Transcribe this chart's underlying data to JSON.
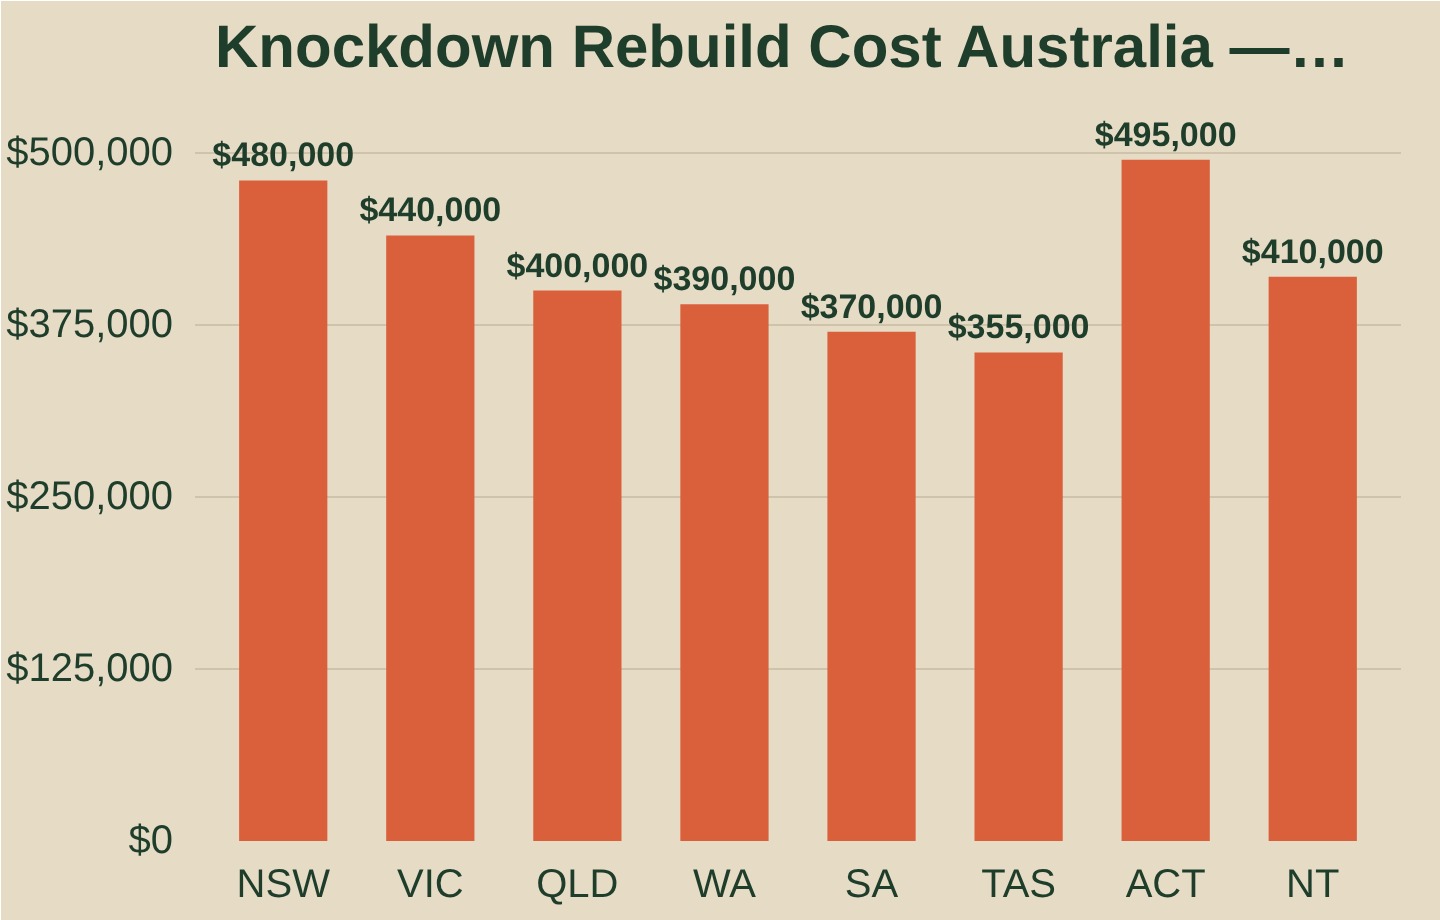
{
  "chart_data": {
    "type": "bar",
    "title": "Knockdown Rebuild Cost Australia —…",
    "categories": [
      "NSW",
      "VIC",
      "QLD",
      "WA",
      "SA",
      "TAS",
      "ACT",
      "NT"
    ],
    "values": [
      480000,
      440000,
      400000,
      390000,
      370000,
      355000,
      495000,
      410000
    ],
    "value_labels": [
      "$480,000",
      "$440,000",
      "$400,000",
      "$390,000",
      "$370,000",
      "$355,000",
      "$495,000",
      "$410,000"
    ],
    "color": "#d9603b",
    "ylim": [
      0,
      545000
    ],
    "yticks": [
      {
        "value": 0,
        "label": "$0"
      },
      {
        "value": 125000,
        "label": "$125,000"
      },
      {
        "value": 250000,
        "label": "$250,000"
      },
      {
        "value": 375000,
        "label": "$375,000"
      },
      {
        "value": 500000,
        "label": "$500,000"
      }
    ],
    "grid": "y"
  }
}
